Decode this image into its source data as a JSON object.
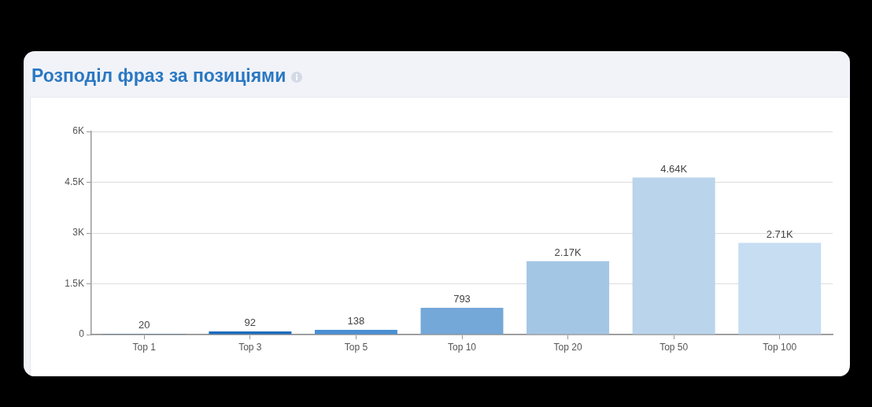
{
  "chart_data": {
    "type": "bar",
    "title": "Розподіл фраз за позиціями",
    "categories": [
      "Top 1",
      "Top 3",
      "Top 5",
      "Top 10",
      "Top 20",
      "Top 50",
      "Top 100"
    ],
    "values": [
      20,
      92,
      138,
      793,
      2170,
      4640,
      2710
    ],
    "value_labels": [
      "20",
      "92",
      "138",
      "793",
      "2.17K",
      "4.64K",
      "2.71K"
    ],
    "colors": [
      "#1b5fa5",
      "#1e6dbd",
      "#4a8fd3",
      "#74a8d8",
      "#a4c6e5",
      "#bad4eb",
      "#c6ddf2"
    ],
    "ylim": [
      0,
      6000
    ],
    "yticks": [
      0,
      {
        "value": 1500,
        "label": "1.5K"
      },
      {
        "value": 3000,
        "label": "3K"
      },
      {
        "value": 4500,
        "label": "4.5K"
      },
      {
        "value": 6000,
        "label": "6K"
      }
    ],
    "grid": "y"
  }
}
